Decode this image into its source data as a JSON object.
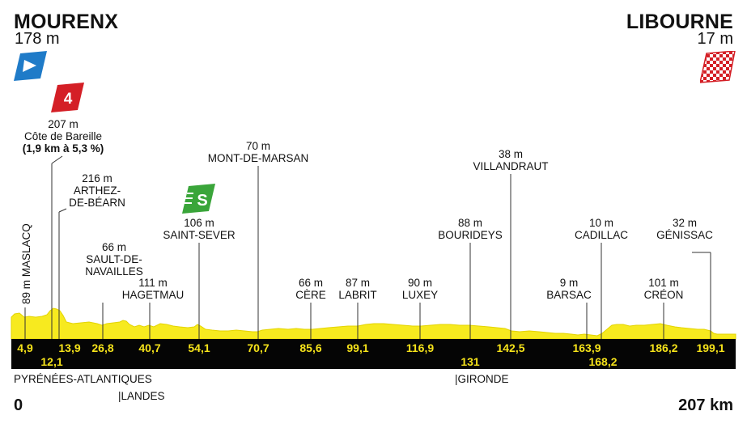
{
  "start": {
    "city": "MOURENX",
    "altitude": "178 m"
  },
  "finish": {
    "city": "LIBOURNE",
    "altitude": "17 m"
  },
  "climb": {
    "category": "4",
    "altitude": "207 m",
    "name": "Côte de Bareille",
    "details": "(1,9 km à 5,3 %)"
  },
  "sprint": {
    "icon": "sprint-s-icon",
    "letter": "S"
  },
  "places": [
    {
      "id": "maslacq",
      "text": "89 m MASLACQ"
    },
    {
      "id": "arthez",
      "alt": "216 m",
      "l1": "ARTHEZ-",
      "l2": "DE-BÉARN"
    },
    {
      "id": "sault",
      "alt": "66 m",
      "l1": "SAULT-DE-",
      "l2": "NAVAILLES"
    },
    {
      "id": "hagetmau",
      "alt": "111 m",
      "l1": "HAGETMAU"
    },
    {
      "id": "saint-sever",
      "alt": "106 m",
      "l1": "SAINT-SEVER"
    },
    {
      "id": "mont-de-marsan",
      "alt": "70 m",
      "l1": "MONT-DE-MARSAN"
    },
    {
      "id": "cere",
      "alt": "66 m",
      "l1": "CÈRE"
    },
    {
      "id": "labrit",
      "alt": "87 m",
      "l1": "LABRIT"
    },
    {
      "id": "luxey",
      "alt": "90 m",
      "l1": "LUXEY"
    },
    {
      "id": "bourideys",
      "alt": "88 m",
      "l1": "BOURIDEYS"
    },
    {
      "id": "villandraut",
      "alt": "38 m",
      "l1": "VILLANDRAUT"
    },
    {
      "id": "barsac",
      "alt": "9 m",
      "l1": "BARSAC"
    },
    {
      "id": "cadillac",
      "alt": "10 m",
      "l1": "CADILLAC"
    },
    {
      "id": "creon",
      "alt": "101 m",
      "l1": "CRÉON"
    },
    {
      "id": "genissac",
      "alt": "32 m",
      "l1": "GÉNISSAC"
    }
  ],
  "km_marks": {
    "top": [
      "4,9",
      "13,9",
      "26,8",
      "40,7",
      "54,1",
      "70,7",
      "85,6",
      "99,1",
      "116,9",
      "142,5",
      "163,9",
      "186,2",
      "199,1"
    ],
    "bottom": [
      "12,1",
      "131",
      "168,2"
    ]
  },
  "regions": [
    "PYRÉNÉES-ATLANTIQUES",
    "|LANDES",
    "|GIRONDE"
  ],
  "scale": {
    "start": "0",
    "end": "207 km"
  },
  "colors": {
    "profile": "#f7ea1f",
    "band": "#050505",
    "km_text": "#f5e21a",
    "start_flag": "#1f7bc8",
    "climb_badge": "#d41f26",
    "sprint_badge": "#3aa53a"
  }
}
